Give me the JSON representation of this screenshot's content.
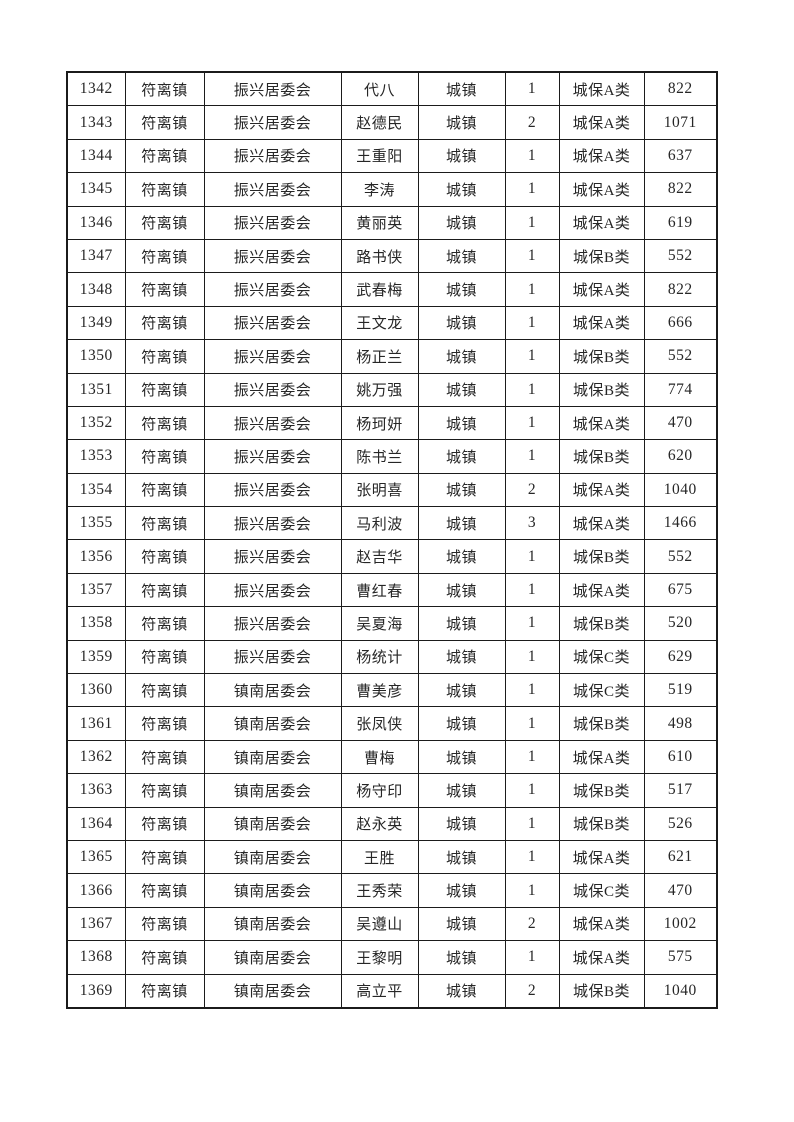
{
  "page": {
    "background_color": "#ffffff",
    "border_color": "#1b1b1b",
    "text_color": "#262626"
  },
  "table": {
    "rows": [
      [
        "1342",
        "符离镇",
        "振兴居委会",
        "代八",
        "城镇",
        "1",
        "城保A类",
        "822"
      ],
      [
        "1343",
        "符离镇",
        "振兴居委会",
        "赵德民",
        "城镇",
        "2",
        "城保A类",
        "1071"
      ],
      [
        "1344",
        "符离镇",
        "振兴居委会",
        "王重阳",
        "城镇",
        "1",
        "城保A类",
        "637"
      ],
      [
        "1345",
        "符离镇",
        "振兴居委会",
        "李涛",
        "城镇",
        "1",
        "城保A类",
        "822"
      ],
      [
        "1346",
        "符离镇",
        "振兴居委会",
        "黄丽英",
        "城镇",
        "1",
        "城保A类",
        "619"
      ],
      [
        "1347",
        "符离镇",
        "振兴居委会",
        "路书侠",
        "城镇",
        "1",
        "城保B类",
        "552"
      ],
      [
        "1348",
        "符离镇",
        "振兴居委会",
        "武春梅",
        "城镇",
        "1",
        "城保A类",
        "822"
      ],
      [
        "1349",
        "符离镇",
        "振兴居委会",
        "王文龙",
        "城镇",
        "1",
        "城保A类",
        "666"
      ],
      [
        "1350",
        "符离镇",
        "振兴居委会",
        "杨正兰",
        "城镇",
        "1",
        "城保B类",
        "552"
      ],
      [
        "1351",
        "符离镇",
        "振兴居委会",
        "姚万强",
        "城镇",
        "1",
        "城保B类",
        "774"
      ],
      [
        "1352",
        "符离镇",
        "振兴居委会",
        "杨珂妍",
        "城镇",
        "1",
        "城保A类",
        "470"
      ],
      [
        "1353",
        "符离镇",
        "振兴居委会",
        "陈书兰",
        "城镇",
        "1",
        "城保B类",
        "620"
      ],
      [
        "1354",
        "符离镇",
        "振兴居委会",
        "张明喜",
        "城镇",
        "2",
        "城保A类",
        "1040"
      ],
      [
        "1355",
        "符离镇",
        "振兴居委会",
        "马利波",
        "城镇",
        "3",
        "城保A类",
        "1466"
      ],
      [
        "1356",
        "符离镇",
        "振兴居委会",
        "赵吉华",
        "城镇",
        "1",
        "城保B类",
        "552"
      ],
      [
        "1357",
        "符离镇",
        "振兴居委会",
        "曹红春",
        "城镇",
        "1",
        "城保A类",
        "675"
      ],
      [
        "1358",
        "符离镇",
        "振兴居委会",
        "吴夏海",
        "城镇",
        "1",
        "城保B类",
        "520"
      ],
      [
        "1359",
        "符离镇",
        "振兴居委会",
        "杨统计",
        "城镇",
        "1",
        "城保C类",
        "629"
      ],
      [
        "1360",
        "符离镇",
        "镇南居委会",
        "曹美彦",
        "城镇",
        "1",
        "城保C类",
        "519"
      ],
      [
        "1361",
        "符离镇",
        "镇南居委会",
        "张凤侠",
        "城镇",
        "1",
        "城保B类",
        "498"
      ],
      [
        "1362",
        "符离镇",
        "镇南居委会",
        "曹梅",
        "城镇",
        "1",
        "城保A类",
        "610"
      ],
      [
        "1363",
        "符离镇",
        "镇南居委会",
        "杨守印",
        "城镇",
        "1",
        "城保B类",
        "517"
      ],
      [
        "1364",
        "符离镇",
        "镇南居委会",
        "赵永英",
        "城镇",
        "1",
        "城保B类",
        "526"
      ],
      [
        "1365",
        "符离镇",
        "镇南居委会",
        "王胜",
        "城镇",
        "1",
        "城保A类",
        "621"
      ],
      [
        "1366",
        "符离镇",
        "镇南居委会",
        "王秀荣",
        "城镇",
        "1",
        "城保C类",
        "470"
      ],
      [
        "1367",
        "符离镇",
        "镇南居委会",
        "吴遵山",
        "城镇",
        "2",
        "城保A类",
        "1002"
      ],
      [
        "1368",
        "符离镇",
        "镇南居委会",
        "王黎明",
        "城镇",
        "1",
        "城保A类",
        "575"
      ],
      [
        "1369",
        "符离镇",
        "镇南居委会",
        "高立平",
        "城镇",
        "2",
        "城保B类",
        "1040"
      ]
    ]
  }
}
